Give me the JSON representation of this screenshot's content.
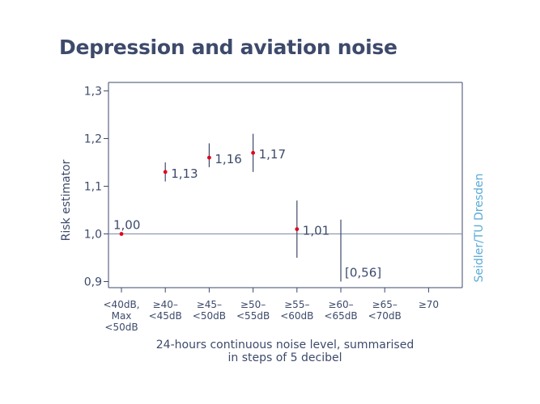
{
  "chart_data": {
    "type": "scatter",
    "title": "Depression and aviation noise",
    "ylabel": "Risk estimator",
    "xlabel": [
      "24-hours continuous noise level, summarised",
      "in steps of 5 decibel"
    ],
    "credit": "Seidler/TU Dresden",
    "ylim": [
      0.9,
      1.34
    ],
    "yticks": [
      {
        "value": 0.9,
        "label": "0,9"
      },
      {
        "value": 1.0,
        "label": "1,0"
      },
      {
        "value": 1.1,
        "label": "1,1"
      },
      {
        "value": 1.2,
        "label": "1,2"
      },
      {
        "value": 1.3,
        "label": "1,3"
      }
    ],
    "reference_line": 1.0,
    "categories": [
      [
        "<40dB,",
        "Max",
        "<50dB"
      ],
      [
        "≥40–",
        "<45dB"
      ],
      [
        "≥45–",
        "<50dB"
      ],
      [
        "≥50–",
        "<55dB"
      ],
      [
        "≥55–",
        "<60dB"
      ],
      [
        "≥60–",
        "<65dB"
      ],
      [
        "≥65–",
        "<70dB"
      ],
      [
        "≥70"
      ]
    ],
    "points": [
      {
        "category_index": 0,
        "value": 1.0,
        "low": null,
        "high": null,
        "label": "1,00"
      },
      {
        "category_index": 1,
        "value": 1.13,
        "low": 1.11,
        "high": 1.15,
        "label": "1,13"
      },
      {
        "category_index": 2,
        "value": 1.16,
        "low": 1.14,
        "high": 1.19,
        "label": "1,16"
      },
      {
        "category_index": 3,
        "value": 1.17,
        "low": 1.13,
        "high": 1.21,
        "label": "1,17"
      },
      {
        "category_index": 4,
        "value": 1.01,
        "low": 0.95,
        "high": 1.07,
        "label": "1,01"
      },
      {
        "category_index": 5,
        "value": null,
        "low": 0.9,
        "high": 1.03,
        "label": "[0,56]"
      }
    ],
    "colors": {
      "axis": "#3d4a6b",
      "marker": "#e3001b",
      "credit": "#5aaad6"
    }
  }
}
